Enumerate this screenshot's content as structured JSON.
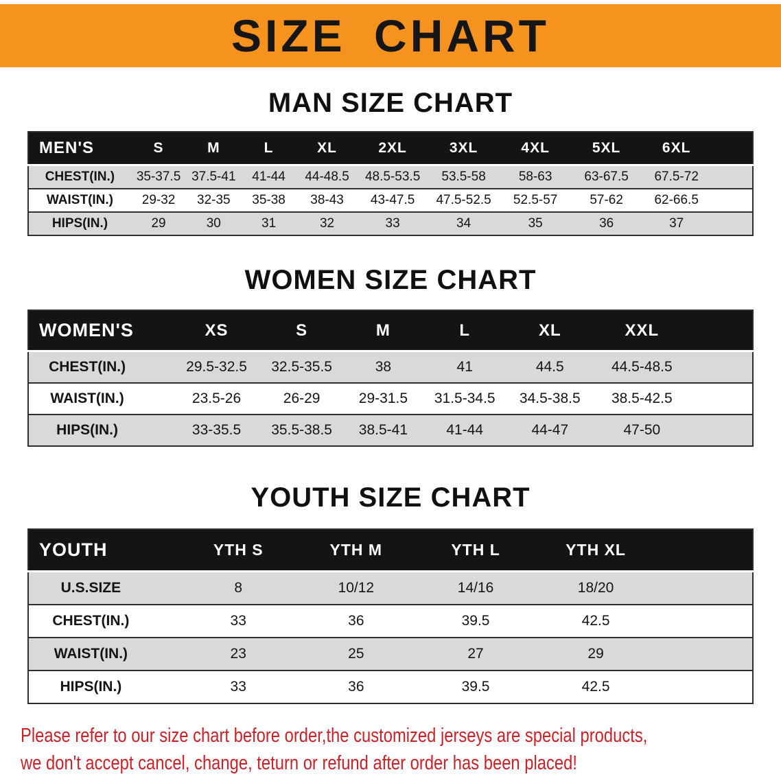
{
  "banner": {
    "title": "SIZE CHART"
  },
  "sections": {
    "men": {
      "heading": "MAN SIZE CHART",
      "table": {
        "header": [
          "MEN'S",
          "S",
          "M",
          "L",
          "XL",
          "2XL",
          "3XL",
          "4XL",
          "5XL",
          "6XL"
        ],
        "rows": [
          [
            "CHEST(IN.)",
            "35-37.5",
            "37.5-41",
            "41-44",
            "44-48.5",
            "48.5-53.5",
            "53.5-58",
            "58-63",
            "63-67.5",
            "67.5-72"
          ],
          [
            "WAIST(IN.)",
            "29-32",
            "32-35",
            "35-38",
            "38-43",
            "43-47.5",
            "47.5-52.5",
            "52.5-57",
            "57-62",
            "62-66.5"
          ],
          [
            "HIPS(IN.)",
            "29",
            "30",
            "31",
            "32",
            "33",
            "34",
            "35",
            "36",
            "37"
          ]
        ]
      }
    },
    "women": {
      "heading": "WOMEN SIZE CHART",
      "table": {
        "header": [
          "WOMEN'S",
          "XS",
          "S",
          "M",
          "L",
          "XL",
          "XXL"
        ],
        "rows": [
          [
            "CHEST(IN.)",
            "29.5-32.5",
            "32.5-35.5",
            "38",
            "41",
            "44.5",
            "44.5-48.5"
          ],
          [
            "WAIST(IN.)",
            "23.5-26",
            "26-29",
            "29-31.5",
            "31.5-34.5",
            "34.5-38.5",
            "38.5-42.5"
          ],
          [
            "HIPS(IN.)",
            "33-35.5",
            "35.5-38.5",
            "38.5-41",
            "41-44",
            "44-47",
            "47-50"
          ]
        ]
      }
    },
    "youth": {
      "heading": "YOUTH SIZE CHART",
      "table": {
        "header": [
          "YOUTH",
          "YTH S",
          "YTH M",
          "YTH L",
          "YTH XL"
        ],
        "rows": [
          [
            "U.S.SIZE",
            "8",
            "10/12",
            "14/16",
            "18/20"
          ],
          [
            "CHEST(IN.)",
            "33",
            "36",
            "39.5",
            "42.5"
          ],
          [
            "WAIST(IN.)",
            "23",
            "25",
            "27",
            "29"
          ],
          [
            "HIPS(IN.)",
            "33",
            "36",
            "39.5",
            "42.5"
          ]
        ]
      }
    }
  },
  "disclaimer": {
    "lines": [
      "Please refer to our size chart before order,the customized jerseys are special products,",
      "we don't accept cancel, change, teturn or refund after order has been placed!"
    ]
  },
  "colors": {
    "banner_background": "#F6921E",
    "title_text": "#161616",
    "table_header_background": "#141414",
    "table_header_text": "#FFFFFF",
    "row_stripe_gray": "#D9D9D9",
    "row_white": "#FFFFFF",
    "disclaimer_red": "#CB2026"
  }
}
